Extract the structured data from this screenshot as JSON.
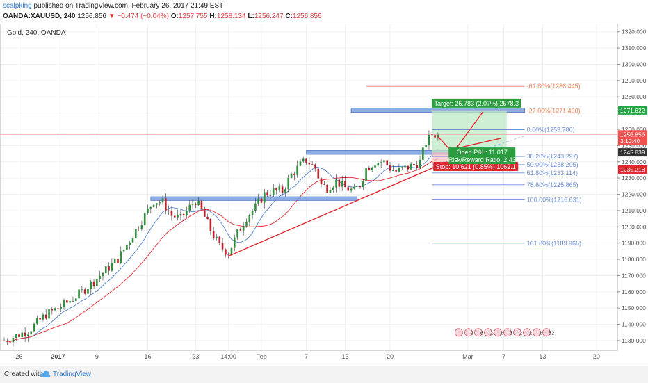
{
  "header": {
    "author": "scalpking",
    "published": " published on TradingView.com, February 26, 2017 21:49 EST",
    "symbol": "OANDA:XAUUSD, 240",
    "last": "1256.856",
    "change_arrow": "▼",
    "change": "−0.474 (−0.04%)",
    "o_label": "O:",
    "o": "1257.755",
    "h_label": "H:",
    "h": "1258.134",
    "l_label": "L:",
    "l": "1256.247",
    "c_label": "C:",
    "c": "1256.856"
  },
  "footer": {
    "created_with": "Created with",
    "brand": "TradingView",
    "logo_icon": "tradingview-cloud-icon"
  },
  "chart_data": {
    "type": "candlestick",
    "title": "Gold, 240, OANDA",
    "ylim": [
      1124,
      1325
    ],
    "y_ticks": [
      1130,
      1140,
      1150,
      1160,
      1170,
      1180,
      1190,
      1200,
      1210,
      1220,
      1230,
      1240,
      1250,
      1260,
      1270,
      1280,
      1290,
      1300,
      1310,
      1320
    ],
    "x_ticks": [
      {
        "label": "26",
        "i": 5
      },
      {
        "label": "2017",
        "i": 18,
        "bold": true
      },
      {
        "label": "9",
        "i": 31
      },
      {
        "label": "16",
        "i": 48
      },
      {
        "label": "23",
        "i": 64
      },
      {
        "label": "14:00",
        "i": 75
      },
      {
        "label": "Feb",
        "i": 86
      },
      {
        "label": "7",
        "i": 101
      },
      {
        "label": "13",
        "i": 114
      },
      {
        "label": "20",
        "i": 129
      },
      {
        "label": "Mar",
        "i": 155
      },
      {
        "label": "7",
        "i": 167
      },
      {
        "label": "13",
        "i": 180
      },
      {
        "label": "20",
        "i": 198
      }
    ],
    "bar_count_axis": 205,
    "anchors": [
      [
        0,
        1130
      ],
      [
        8,
        1136
      ],
      [
        14,
        1146
      ],
      [
        20,
        1152
      ],
      [
        26,
        1160
      ],
      [
        32,
        1170
      ],
      [
        38,
        1180
      ],
      [
        42,
        1192
      ],
      [
        46,
        1204
      ],
      [
        50,
        1216
      ],
      [
        53,
        1215
      ],
      [
        56,
        1207
      ],
      [
        59,
        1205
      ],
      [
        62,
        1212
      ],
      [
        64,
        1216
      ],
      [
        66,
        1210
      ],
      [
        69,
        1198
      ],
      [
        72,
        1188
      ],
      [
        75,
        1184
      ],
      [
        78,
        1196
      ],
      [
        81,
        1206
      ],
      [
        84,
        1212
      ],
      [
        87,
        1220
      ],
      [
        90,
        1222
      ],
      [
        93,
        1222
      ],
      [
        96,
        1232
      ],
      [
        99,
        1238
      ],
      [
        101,
        1241
      ],
      [
        104,
        1236
      ],
      [
        106,
        1226
      ],
      [
        108,
        1224
      ],
      [
        111,
        1228
      ],
      [
        114,
        1224
      ],
      [
        117,
        1222
      ],
      [
        119,
        1226
      ],
      [
        121,
        1236
      ],
      [
        124,
        1240
      ],
      [
        127,
        1240
      ],
      [
        129,
        1236
      ],
      [
        131,
        1234
      ],
      [
        134,
        1236
      ],
      [
        137,
        1238
      ],
      [
        139,
        1240
      ],
      [
        141,
        1252
      ],
      [
        143,
        1257
      ],
      [
        145,
        1257
      ]
    ],
    "bar_start": 0,
    "bar_end": 145,
    "last_price": 1256.856,
    "price_badges": [
      {
        "text": "1271.622",
        "color": "#21a848",
        "value": 1271.622
      },
      {
        "text": "1256.856",
        "color": "#ef5350",
        "value": 1256.856
      },
      {
        "text": "3:10:40",
        "color": "#ef5350",
        "value": 1252.8
      },
      {
        "text": "1245.839",
        "color": "#333333",
        "value": 1245.839
      },
      {
        "text": "1235.218",
        "color": "#e0262f",
        "value": 1235.218
      }
    ],
    "fib": {
      "start_i": 143,
      "end_i": 174,
      "top_start_i": 121,
      "levels": [
        {
          "label": "-61.80%(1286.445)",
          "value": 1286.445,
          "color": "#e8855a"
        },
        {
          "label": "-27.00%(1271.430)",
          "value": 1271.43,
          "color": "#e8855a"
        },
        {
          "label": "0.00%(1259.780)",
          "value": 1259.78,
          "color": "#6d8fd6"
        },
        {
          "label": "38.20%(1243.297)",
          "value": 1243.297,
          "color": "#6d8fd6"
        },
        {
          "label": "50.00%(1238.205)",
          "value": 1238.205,
          "color": "#6d8fd6"
        },
        {
          "label": "61.80%(1233.114)",
          "value": 1233.114,
          "color": "#6d8fd6"
        },
        {
          "label": "78.60%(1225.865)",
          "value": 1225.865,
          "color": "#6d8fd6"
        },
        {
          "label": "100.00%(1216.631)",
          "value": 1216.631,
          "color": "#6d8fd6"
        },
        {
          "label": "161.80%(1189.966)",
          "value": 1189.966,
          "color": "#6d8fd6"
        }
      ]
    },
    "zones": [
      {
        "from_i": 49,
        "to_i": 118,
        "y1": 1218.5,
        "y2": 1216.2
      },
      {
        "from_i": 101,
        "to_i": 168,
        "y1": 1247.0,
        "y2": 1244.6
      },
      {
        "from_i": 116,
        "to_i": 174,
        "y1": 1273.0,
        "y2": 1270.4
      }
    ],
    "trendlines": [
      {
        "from": [
          75,
          1182
        ],
        "to": [
          148,
          1240
        ],
        "color": "#e0262f",
        "dashed": false
      },
      {
        "from": [
          148,
          1240
        ],
        "to": [
          174,
          1256
        ],
        "color": "#9bb4e6",
        "dashed": true
      }
    ],
    "projection": [
      [
        145,
        1255.5
      ],
      [
        150,
        1245.5
      ],
      [
        160,
        1270.6
      ],
      [
        150,
        1247.8
      ],
      [
        166,
        1254.5
      ]
    ],
    "position": {
      "from_i": 143,
      "to_i": 168,
      "entry": 1245.839,
      "target": 1271.622,
      "stop": 1235.218,
      "target_label": "Target: 25.783 (2.07%) 2578.3",
      "stop_label": "Stop: 10.621 (0.85%) 1062.1",
      "pnl_label": "Open P&L: 11.017",
      "rr_label": "Risk/Reward Ratio: 2.43"
    },
    "events": {
      "count": 10,
      "text": [
        "",
        "2",
        "6",
        "28",
        "2",
        "3",
        "2",
        "2",
        "2",
        "52"
      ]
    }
  }
}
